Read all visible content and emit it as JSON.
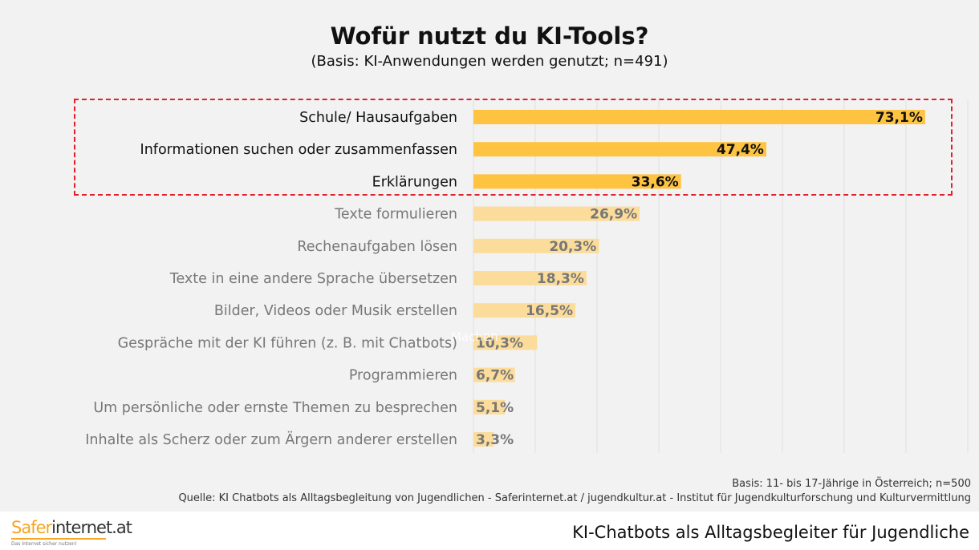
{
  "chart_data": {
    "type": "bar",
    "orientation": "horizontal",
    "title": "Wofür nutzt du KI-Tools?",
    "subtitle": "(Basis: KI-Anwendungen werden genutzt; n=491)",
    "categories": [
      "Schule/ Hausaufgaben",
      "Informationen suchen oder zusammenfassen",
      "Erklärungen",
      "Texte formulieren",
      "Rechenaufgaben lösen",
      "Texte in eine andere Sprache übersetzen",
      "Bilder, Videos oder Musik erstellen",
      "Gespräche mit der KI führen (z. B. mit Chatbots)",
      "Programmieren",
      "Um persönliche oder ernste Themen zu besprechen",
      "Inhalte als Scherz oder zum Ärgern anderer erstellen"
    ],
    "values": [
      73.1,
      47.4,
      33.6,
      26.9,
      20.3,
      18.3,
      16.5,
      10.3,
      6.7,
      5.1,
      3.3
    ],
    "data_labels": [
      "73,1%",
      "47,4%",
      "33,6%",
      "26,9%",
      "20,3%",
      "18,3%",
      "16,5%",
      "10,3%",
      "6,7%",
      "5,1%",
      "3,3%"
    ],
    "highlighted": [
      true,
      true,
      true,
      false,
      false,
      false,
      false,
      false,
      false,
      false,
      false
    ],
    "xlim": [
      0,
      80
    ],
    "grid": true,
    "colors": {
      "highlight": "#ffc342",
      "muted": "#fbdc9a",
      "highlight_text": "#111111",
      "muted_text": "#777777",
      "box": "#e0202a"
    }
  },
  "watermark": "Machen",
  "basis": "Basis: 11- bis 17-Jährige in Österreich; n=500",
  "source": "Quelle: KI Chatbots als Alltagsbegleitung von Jugendlichen - Saferinternet.at / jugendkultur.at - Institut für Jugendkulturforschung und Kulturvermittlung",
  "footer": {
    "logo_a": "Safer",
    "logo_b": "internet.at",
    "logo_tagline": "Das Internet sicher nutzen!",
    "title": "KI-Chatbots als Alltagsbegleiter für Jugendliche"
  }
}
